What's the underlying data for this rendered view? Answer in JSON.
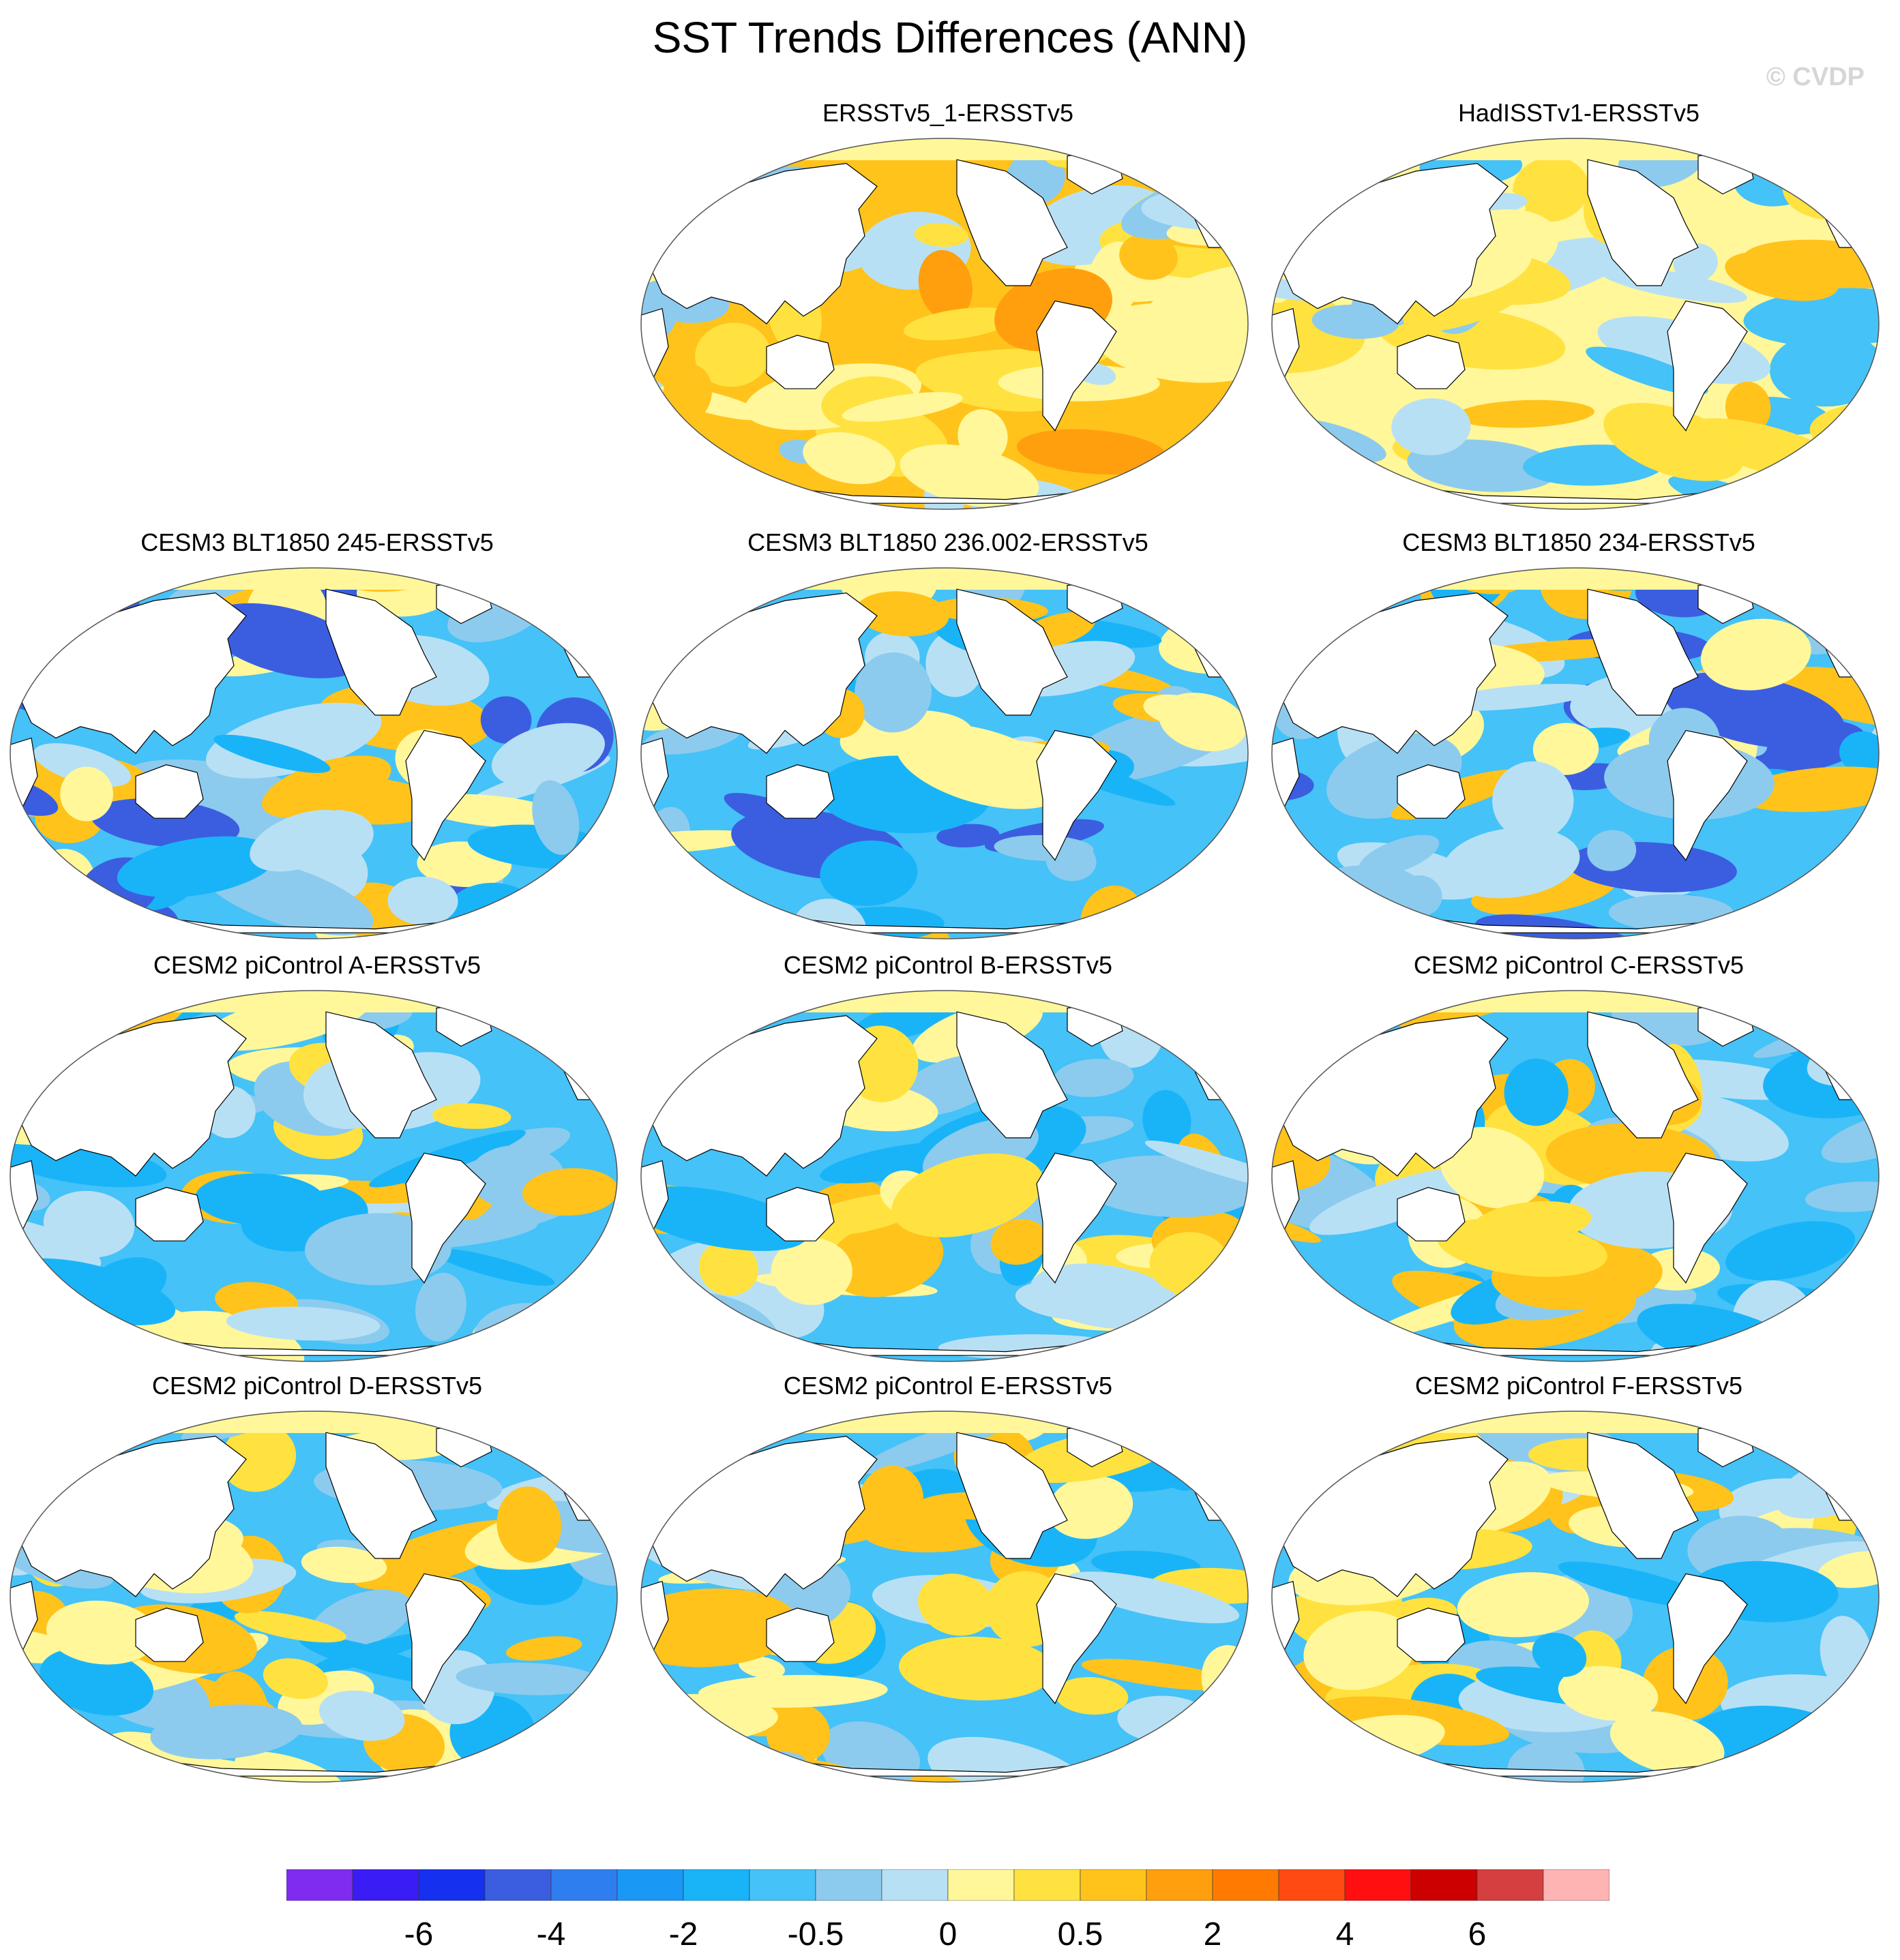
{
  "figure": {
    "title": "SST Trends Differences (ANN)",
    "credit": "© CVDP"
  },
  "map_projection": "robinson",
  "land_color": "#ffffff",
  "coastline_color": "#000000",
  "panels": [
    {
      "id": "p1",
      "title": "ERSSTv5_1-ERSSTv5",
      "row": 0,
      "col": 1,
      "dominant": "warm",
      "seed": 3
    },
    {
      "id": "p2",
      "title": "HadISSTv1-ERSSTv5",
      "row": 0,
      "col": 2,
      "dominant": "mixed-warm",
      "seed": 7
    },
    {
      "id": "p3",
      "title": "CESM3 BLT1850 245-ERSSTv5",
      "row": 1,
      "col": 0,
      "dominant": "cool",
      "seed": 11
    },
    {
      "id": "p4",
      "title": "CESM3 BLT1850 236.002-ERSSTv5",
      "row": 1,
      "col": 1,
      "dominant": "cool",
      "seed": 13
    },
    {
      "id": "p5",
      "title": "CESM3 BLT1850 234-ERSSTv5",
      "row": 1,
      "col": 2,
      "dominant": "cool",
      "seed": 17
    },
    {
      "id": "p6",
      "title": "CESM2 piControl A-ERSSTv5",
      "row": 2,
      "col": 0,
      "dominant": "mixed",
      "seed": 19
    },
    {
      "id": "p7",
      "title": "CESM2 piControl B-ERSSTv5",
      "row": 2,
      "col": 1,
      "dominant": "mixed",
      "seed": 23
    },
    {
      "id": "p8",
      "title": "CESM2 piControl C-ERSSTv5",
      "row": 2,
      "col": 2,
      "dominant": "mixed",
      "seed": 29
    },
    {
      "id": "p9",
      "title": "CESM2 piControl D-ERSSTv5",
      "row": 3,
      "col": 0,
      "dominant": "mixed",
      "seed": 31
    },
    {
      "id": "p10",
      "title": "CESM2 piControl E-ERSSTv5",
      "row": 3,
      "col": 1,
      "dominant": "mixed",
      "seed": 37
    },
    {
      "id": "p11",
      "title": "CESM2 piControl F-ERSSTv5",
      "row": 3,
      "col": 2,
      "dominant": "mixed",
      "seed": 41
    }
  ],
  "colorbar": {
    "colors": [
      "#7f2bf0",
      "#3a1cf5",
      "#1630f0",
      "#3b5ee0",
      "#2f7ef0",
      "#1a98f5",
      "#19b4f8",
      "#45c2f8",
      "#8ccbee",
      "#b8e0f5",
      "#fff79a",
      "#ffe23f",
      "#ffc31b",
      "#ff9f0e",
      "#ff7a00",
      "#ff4a12",
      "#ff0f0f",
      "#cc0000",
      "#d53f3f",
      "#ffb4b4"
    ],
    "labels": [
      {
        "text": "-6",
        "boundary": 2
      },
      {
        "text": "-4",
        "boundary": 4
      },
      {
        "text": "-2",
        "boundary": 6
      },
      {
        "text": "-0.5",
        "boundary": 8
      },
      {
        "text": "0",
        "boundary": 10
      },
      {
        "text": "0.5",
        "boundary": 12
      },
      {
        "text": "2",
        "boundary": 14
      },
      {
        "text": "4",
        "boundary": 16
      },
      {
        "text": "6",
        "boundary": 18
      }
    ]
  }
}
